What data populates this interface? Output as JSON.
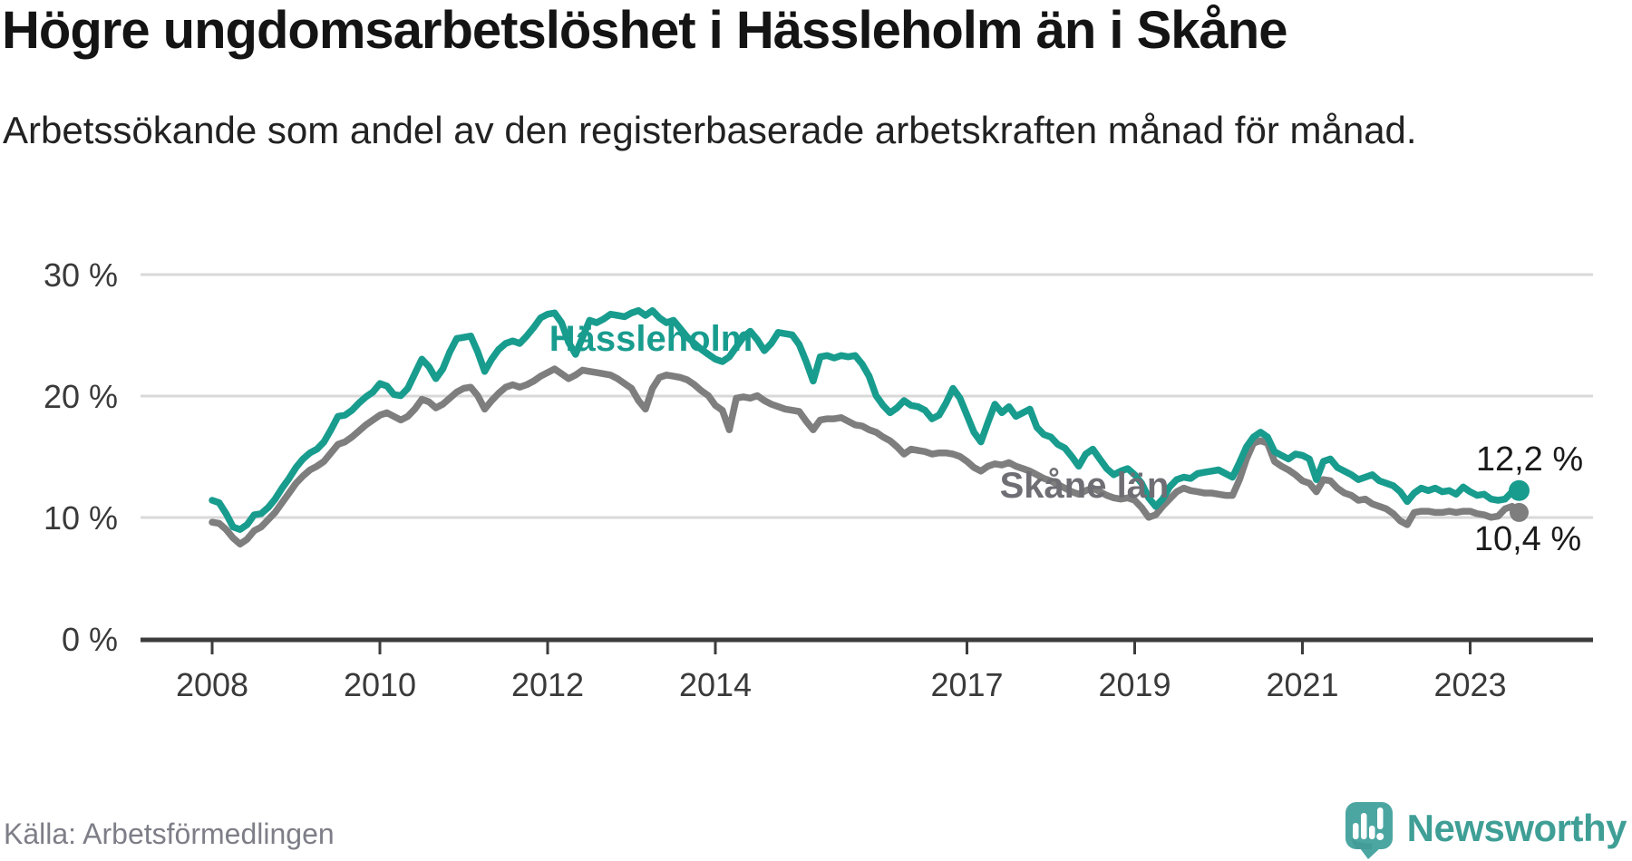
{
  "header": {
    "title": "Högre ungdomsarbetslöshet i Hässleholm än i Skåne",
    "subtitle": "Arbetssökande som andel av den registerbaserade arbetskraften månad för månad."
  },
  "chart": {
    "y_axis": {
      "labels": [
        "30 %",
        "20 %",
        "10 %",
        "0 %"
      ],
      "values": [
        30,
        20,
        10,
        0
      ]
    },
    "x_axis": {
      "labels": [
        "2008",
        "2010",
        "2012",
        "2014",
        "2017",
        "2019",
        "2021",
        "2023"
      ]
    },
    "series_labels": {
      "hassleholm": "Hässleholm",
      "skane": "Skåne län"
    },
    "end_labels": {
      "hassleholm": "12,2 %",
      "skane": "10,4 %"
    },
    "colors": {
      "hassleholm_line": "#189c8e",
      "skane_line": "#7e7e7e",
      "skane_label": "#6e6e74",
      "grid": "#d9d9d9",
      "axis": "#3c3c3c"
    }
  },
  "chart_data": {
    "type": "line",
    "title": "Högre ungdomsarbetslöshet i Hässleholm än i Skåne",
    "subtitle": "Arbetssökande som andel av den registerbaserade arbetskraften månad för månad.",
    "unit": "%",
    "x_start": "2008-01",
    "x_end": "2023-08",
    "x_frequency": "monthly",
    "x_tick_labels": [
      "2008",
      "2010",
      "2012",
      "2014",
      "2017",
      "2019",
      "2021",
      "2023"
    ],
    "ylim": [
      0,
      32
    ],
    "grid": "horizontal",
    "legend_position": "inline-labels",
    "series": [
      {
        "name": "Hässleholm",
        "color": "#189c8e",
        "last_value_label": "12,2 %",
        "values": [
          11.4,
          11.2,
          10.3,
          9.2,
          9.0,
          9.4,
          10.2,
          10.3,
          10.8,
          11.5,
          12.4,
          13.2,
          14.1,
          14.8,
          15.3,
          15.6,
          16.2,
          17.2,
          18.3,
          18.4,
          18.8,
          19.4,
          19.9,
          20.3,
          21.0,
          20.8,
          20.1,
          20.0,
          20.6,
          21.8,
          23.0,
          22.4,
          21.4,
          22.2,
          23.6,
          24.7,
          24.8,
          24.9,
          23.6,
          22.0,
          23.0,
          23.8,
          24.3,
          24.5,
          24.3,
          24.9,
          25.6,
          26.4,
          26.7,
          26.8,
          26.0,
          24.4,
          23.4,
          24.8,
          26.2,
          26.0,
          26.3,
          26.7,
          26.6,
          26.5,
          26.8,
          27.0,
          26.6,
          27.0,
          26.4,
          26.0,
          26.2,
          25.5,
          24.8,
          24.3,
          23.8,
          23.4,
          23.0,
          22.8,
          23.2,
          24.0,
          24.8,
          25.3,
          24.6,
          23.7,
          24.3,
          25.2,
          25.1,
          25.0,
          24.2,
          22.8,
          21.2,
          23.2,
          23.3,
          23.1,
          23.3,
          23.2,
          23.3,
          22.6,
          21.6,
          20.0,
          19.2,
          18.6,
          19.0,
          19.6,
          19.2,
          19.1,
          18.8,
          18.1,
          18.4,
          19.4,
          20.6,
          19.8,
          18.4,
          17.0,
          16.2,
          17.8,
          19.3,
          18.6,
          19.1,
          18.3,
          18.6,
          18.9,
          17.4,
          16.8,
          16.6,
          16.0,
          15.7,
          15.0,
          14.2,
          15.2,
          15.6,
          14.8,
          14.0,
          13.5,
          13.8,
          14.0,
          13.5,
          12.8,
          11.6,
          10.9,
          11.5,
          12.5,
          13.1,
          13.3,
          13.2,
          13.6,
          13.7,
          13.8,
          13.9,
          13.6,
          13.3,
          14.5,
          15.8,
          16.6,
          17.0,
          16.6,
          15.4,
          15.1,
          14.8,
          15.2,
          15.1,
          14.8,
          13.1,
          14.6,
          14.8,
          14.1,
          13.8,
          13.5,
          13.1,
          13.3,
          13.5,
          13.0,
          12.8,
          12.6,
          12.1,
          11.3,
          12.0,
          12.4,
          12.2,
          12.4,
          12.1,
          12.2,
          11.9,
          12.5,
          12.1,
          11.8,
          11.9,
          11.5,
          11.4,
          11.5,
          12.1,
          12.2
        ]
      },
      {
        "name": "Skåne län",
        "color": "#7e7e7e",
        "last_value_label": "10,4 %",
        "values": [
          9.6,
          9.5,
          9.0,
          8.3,
          7.8,
          8.2,
          8.9,
          9.2,
          9.8,
          10.4,
          11.2,
          12.0,
          12.8,
          13.4,
          13.9,
          14.2,
          14.6,
          15.3,
          16.0,
          16.2,
          16.6,
          17.1,
          17.6,
          18.0,
          18.4,
          18.6,
          18.3,
          18.0,
          18.3,
          18.9,
          19.7,
          19.5,
          19.0,
          19.3,
          19.8,
          20.3,
          20.6,
          20.7,
          20.0,
          18.9,
          19.6,
          20.2,
          20.7,
          20.9,
          20.7,
          20.9,
          21.2,
          21.6,
          21.9,
          22.2,
          21.8,
          21.4,
          21.7,
          22.1,
          22.0,
          21.9,
          21.8,
          21.7,
          21.4,
          21.0,
          20.6,
          19.6,
          18.9,
          20.6,
          21.5,
          21.7,
          21.6,
          21.5,
          21.3,
          20.9,
          20.4,
          20.0,
          19.2,
          18.8,
          17.2,
          19.8,
          19.9,
          19.8,
          20.0,
          19.6,
          19.3,
          19.1,
          18.9,
          18.8,
          18.7,
          17.9,
          17.2,
          18.0,
          18.1,
          18.1,
          18.2,
          17.9,
          17.6,
          17.5,
          17.2,
          17.0,
          16.6,
          16.3,
          15.8,
          15.2,
          15.6,
          15.5,
          15.4,
          15.2,
          15.3,
          15.3,
          15.2,
          15.0,
          14.6,
          14.1,
          13.8,
          14.2,
          14.4,
          14.3,
          14.5,
          14.2,
          14.0,
          13.8,
          13.5,
          13.2,
          13.0,
          12.7,
          12.4,
          12.1,
          11.9,
          12.2,
          12.4,
          12.1,
          11.8,
          11.6,
          11.5,
          11.6,
          11.4,
          10.8,
          10.0,
          10.2,
          10.9,
          11.5,
          12.1,
          12.4,
          12.2,
          12.1,
          12.0,
          12.0,
          11.9,
          11.8,
          11.8,
          13.1,
          14.8,
          16.1,
          16.3,
          16.1,
          14.6,
          14.2,
          13.9,
          13.5,
          13.0,
          12.8,
          12.1,
          13.1,
          13.0,
          12.4,
          12.0,
          11.8,
          11.4,
          11.5,
          11.1,
          10.9,
          10.7,
          10.3,
          9.7,
          9.4,
          10.4,
          10.5,
          10.5,
          10.4,
          10.4,
          10.5,
          10.4,
          10.5,
          10.5,
          10.3,
          10.2,
          10.0,
          10.1,
          10.7,
          10.9,
          10.4
        ]
      }
    ]
  },
  "footer": {
    "source": "Källa: Arbetsförmedlingen",
    "brand": "Newsworthy",
    "brand_color": "#4ba6a1"
  }
}
